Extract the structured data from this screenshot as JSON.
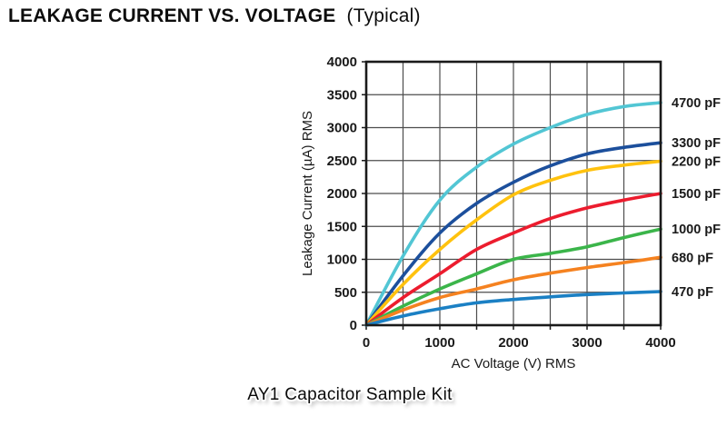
{
  "title": {
    "main": "LEAKAGE CURRENT VS. VOLTAGE",
    "suffix": "(Typical)"
  },
  "caption": {
    "text": "AY1 Capacitor Sample Kit"
  },
  "chart_data": {
    "type": "line",
    "title": "LEAKAGE CURRENT VS. VOLTAGE (Typical)",
    "xlabel": "AC Voltage (V) RMS",
    "ylabel": "Leakage Current (µA) RMS",
    "xlim": [
      0,
      4000
    ],
    "ylim": [
      0,
      4000
    ],
    "grid": true,
    "grid_step": 500,
    "x_ticks": [
      0,
      1000,
      2000,
      3000,
      4000
    ],
    "y_ticks": [
      0,
      500,
      1000,
      1500,
      2000,
      2500,
      3000,
      3500,
      4000
    ],
    "legend_position": "right-of-curve-ends",
    "grid_color": "#4d4d4d",
    "frame_color": "#1a1a1a",
    "label_color": "#1a1a1a",
    "x": [
      0,
      500,
      1000,
      1500,
      2000,
      2500,
      3000,
      3500,
      4000
    ],
    "series": [
      {
        "name": "4700 pF",
        "color": "#52C6D4",
        "values": [
          0,
          1050,
          1900,
          2400,
          2750,
          3000,
          3200,
          3320,
          3380
        ]
      },
      {
        "name": "3300 pF",
        "color": "#1C4F9C",
        "values": [
          0,
          750,
          1400,
          1850,
          2170,
          2420,
          2600,
          2700,
          2770
        ]
      },
      {
        "name": "2200 pF",
        "color": "#FFC20E",
        "values": [
          0,
          620,
          1150,
          1600,
          1980,
          2200,
          2350,
          2430,
          2490
        ]
      },
      {
        "name": "1500 pF",
        "color": "#EC1C2E",
        "values": [
          0,
          420,
          780,
          1150,
          1400,
          1620,
          1780,
          1900,
          2000
        ]
      },
      {
        "name": "1000 pF",
        "color": "#3BB54A",
        "values": [
          0,
          290,
          550,
          780,
          1000,
          1090,
          1190,
          1330,
          1460
        ]
      },
      {
        "name": "680 pF",
        "color": "#F58220",
        "values": [
          0,
          230,
          420,
          550,
          690,
          790,
          875,
          950,
          1030
        ]
      },
      {
        "name": "470 pF",
        "color": "#1B80C4",
        "values": [
          0,
          140,
          250,
          340,
          390,
          430,
          465,
          490,
          510
        ]
      }
    ]
  }
}
